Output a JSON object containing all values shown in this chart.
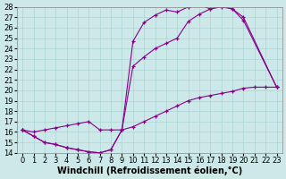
{
  "xlabel": "Windchill (Refroidissement éolien,°C)",
  "bg_color": "#cce8e8",
  "line_color": "#880088",
  "xlim": [
    -0.5,
    23.5
  ],
  "ylim": [
    14,
    28
  ],
  "xticks": [
    0,
    1,
    2,
    3,
    4,
    5,
    6,
    7,
    8,
    9,
    10,
    11,
    12,
    13,
    14,
    15,
    16,
    17,
    18,
    19,
    20,
    21,
    22,
    23
  ],
  "yticks": [
    14,
    15,
    16,
    17,
    18,
    19,
    20,
    21,
    22,
    23,
    24,
    25,
    26,
    27,
    28
  ],
  "grid_color": "#aad4d4",
  "xlabel_fontsize": 7,
  "tick_fontsize": 6,
  "line1_x": [
    0,
    1,
    2,
    3,
    4,
    5,
    6,
    7,
    8,
    9,
    10,
    11,
    12,
    13,
    14,
    15,
    16,
    17,
    18,
    19,
    20,
    23
  ],
  "line1_y": [
    16.2,
    15.6,
    15.0,
    14.8,
    14.5,
    14.3,
    14.1,
    14.0,
    14.3,
    16.2,
    24.7,
    26.5,
    27.2,
    27.7,
    27.5,
    28.0,
    28.2,
    27.8,
    28.1,
    27.8,
    27.0,
    20.3
  ],
  "line2_x": [
    0,
    1,
    2,
    3,
    4,
    5,
    6,
    7,
    8,
    9,
    10,
    11,
    12,
    13,
    14,
    15,
    16,
    17,
    18,
    19,
    20,
    23
  ],
  "line2_y": [
    16.2,
    15.6,
    15.0,
    14.8,
    14.5,
    14.3,
    14.1,
    14.0,
    14.3,
    16.2,
    22.3,
    23.2,
    24.0,
    24.5,
    25.0,
    26.6,
    27.3,
    27.8,
    28.0,
    27.8,
    26.7,
    20.3
  ],
  "line3_x": [
    0,
    1,
    2,
    3,
    4,
    5,
    6,
    7,
    8,
    9,
    10,
    11,
    12,
    13,
    14,
    15,
    16,
    17,
    18,
    19,
    20,
    21,
    22,
    23
  ],
  "line3_y": [
    16.2,
    16.0,
    16.2,
    16.4,
    16.6,
    16.8,
    17.0,
    16.2,
    16.2,
    16.2,
    16.5,
    17.0,
    17.5,
    18.0,
    18.5,
    19.0,
    19.3,
    19.5,
    19.7,
    19.9,
    20.2,
    20.3,
    20.3,
    20.3
  ]
}
